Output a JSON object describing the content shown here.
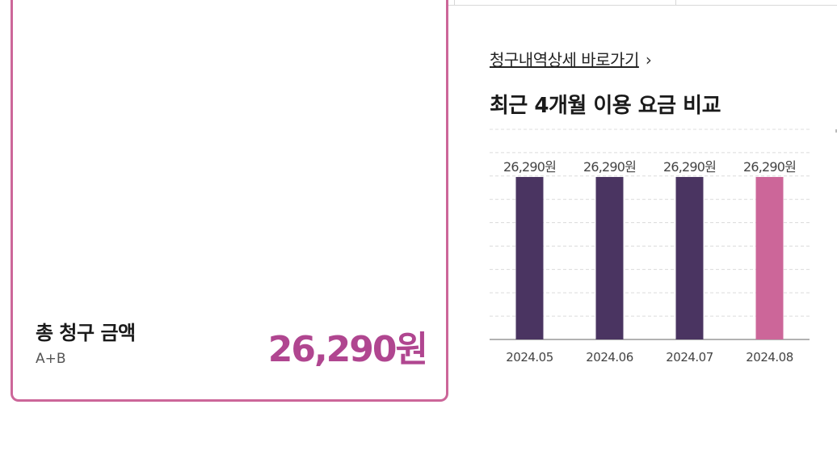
{
  "bill_card": {
    "title": "총 청구 금액",
    "subtitle": "A+B",
    "amount": "26,290원"
  },
  "detail_link": {
    "label": "청구내역상세 바로가기",
    "chevron": "›"
  },
  "chart_heading": "최근 4개월 이용 요금 비교",
  "colors": {
    "accent": "#cc6699",
    "amount_text": "#b04690",
    "bar_past": "#4a3461",
    "bar_current": "#cc6699"
  },
  "chart_data": {
    "type": "bar",
    "categories": [
      "2024.05",
      "2024.06",
      "2024.07",
      "2024.08"
    ],
    "values": [
      26290,
      26290,
      26290,
      26290
    ],
    "data_labels": [
      "26,290원",
      "26,290원",
      "26,290원",
      "26,290원"
    ],
    "highlight_index": 3,
    "ylim": [
      0,
      34000
    ],
    "grid": true,
    "title": "",
    "xlabel": "",
    "ylabel": ""
  }
}
